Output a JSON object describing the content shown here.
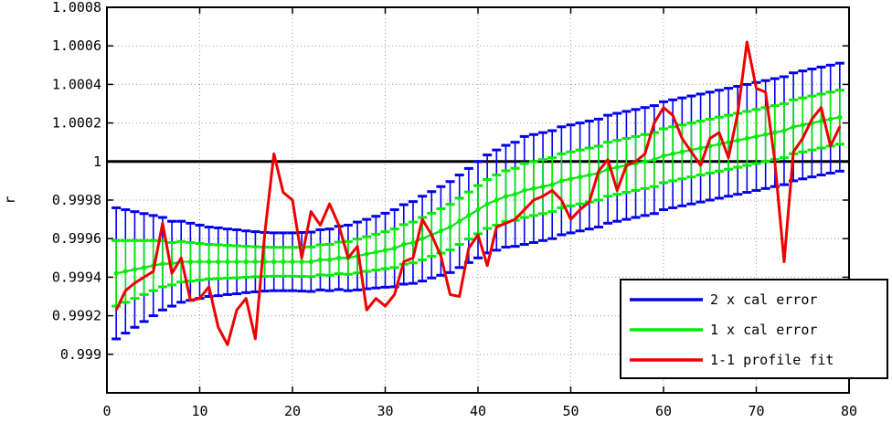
{
  "chart_data": {
    "type": "line",
    "title": "",
    "xlabel": "",
    "ylabel": "r",
    "xlim": [
      0,
      80
    ],
    "ylim": [
      0.9988,
      1.0008
    ],
    "x_ticks": [
      0,
      10,
      20,
      30,
      40,
      50,
      60,
      70,
      80
    ],
    "y_ticks": [
      0.999,
      0.9992,
      0.9994,
      0.9996,
      0.9998,
      1,
      1.0002,
      1.0004,
      1.0006,
      1.0008
    ],
    "y_tick_labels": [
      "0.999",
      "0.9992",
      "0.9994",
      "0.9996",
      "0.9998",
      "1",
      "1.0002",
      "1.0004",
      "1.0006",
      "1.0008"
    ],
    "grid": true,
    "legend_position": "bottom-right",
    "reference_line": {
      "y": 1,
      "color": "#000000"
    },
    "calibration": {
      "x": [
        1,
        2,
        3,
        4,
        5,
        6,
        7,
        8,
        9,
        10,
        11,
        12,
        13,
        14,
        15,
        16,
        17,
        18,
        19,
        20,
        21,
        22,
        23,
        24,
        25,
        26,
        27,
        28,
        29,
        30,
        31,
        32,
        33,
        34,
        35,
        36,
        37,
        38,
        39,
        40,
        41,
        42,
        43,
        44,
        45,
        46,
        47,
        48,
        49,
        50,
        51,
        52,
        53,
        54,
        55,
        56,
        57,
        58,
        59,
        60,
        61,
        62,
        63,
        64,
        65,
        66,
        67,
        68,
        69,
        70,
        71,
        72,
        73,
        74,
        75,
        76,
        77,
        78,
        79
      ],
      "center": [
        0.99942,
        0.99943,
        0.99944,
        0.99945,
        0.99946,
        0.99947,
        0.99947,
        0.99948,
        0.99948,
        0.99948,
        0.99948,
        0.99948,
        0.99948,
        0.99948,
        0.99948,
        0.99948,
        0.99948,
        0.99948,
        0.99948,
        0.99948,
        0.99948,
        0.99948,
        0.99949,
        0.99949,
        0.9995,
        0.9995,
        0.99951,
        0.99952,
        0.99953,
        0.99954,
        0.99955,
        0.99957,
        0.99958,
        0.9996,
        0.99962,
        0.99964,
        0.99966,
        0.99969,
        0.99972,
        0.99975,
        0.99978,
        0.9998,
        0.99982,
        0.99983,
        0.99985,
        0.99986,
        0.99987,
        0.99988,
        0.9999,
        0.99991,
        0.99992,
        0.99993,
        0.99994,
        0.99996,
        0.99997,
        0.99998,
        0.99999,
        1.0,
        1.00001,
        1.00003,
        1.00004,
        1.00005,
        1.00006,
        1.00007,
        1.00008,
        1.00009,
        1.0001,
        1.00011,
        1.00012,
        1.00013,
        1.00014,
        1.00015,
        1.00016,
        1.00018,
        1.00019,
        1.0002,
        1.00021,
        1.00022,
        1.00023
      ],
      "sigma": [
        0.00017,
        0.00016,
        0.00015,
        0.00014,
        0.00013,
        0.00012,
        0.00011,
        0.000105,
        0.0001,
        9.5e-05,
        9e-05,
        8.8e-05,
        8.5e-05,
        8.3e-05,
        8e-05,
        7.8e-05,
        7.6e-05,
        7.5e-05,
        7.5e-05,
        7.5e-05,
        7.6e-05,
        7.7e-05,
        7.8e-05,
        8e-05,
        8.2e-05,
        8.5e-05,
        8.8e-05,
        9e-05,
        9.3e-05,
        9.6e-05,
        0.0001,
        0.000103,
        0.000106,
        0.00011,
        0.000112,
        0.000115,
        0.000118,
        0.00012,
        0.000122,
        0.000125,
        0.000127,
        0.00013,
        0.000132,
        0.000135,
        0.00014,
        0.00014,
        0.00014,
        0.00014,
        0.00014,
        0.00014,
        0.00014,
        0.00014,
        0.00014,
        0.00014,
        0.00014,
        0.00014,
        0.00014,
        0.00014,
        0.00014,
        0.00014,
        0.00014,
        0.00014,
        0.00014,
        0.00014,
        0.00014,
        0.00014,
        0.00014,
        0.00014,
        0.00014,
        0.00014,
        0.00014,
        0.00014,
        0.00014,
        0.00014,
        0.00014,
        0.00014,
        0.00014,
        0.00014,
        0.00014
      ]
    },
    "series": [
      {
        "name": "2 x cal error",
        "color": "#0000ee",
        "multiplier": 2
      },
      {
        "name": "1 x cal error",
        "color": "#00ee00",
        "multiplier": 1
      },
      {
        "name": "1-1 profile fit",
        "color": "#ee0000",
        "x": [
          1,
          2,
          3,
          4,
          5,
          6,
          7,
          8,
          9,
          10,
          11,
          12,
          13,
          14,
          15,
          16,
          17,
          18,
          19,
          20,
          21,
          22,
          23,
          24,
          25,
          26,
          27,
          28,
          29,
          30,
          31,
          32,
          33,
          34,
          35,
          36,
          37,
          38,
          39,
          40,
          41,
          42,
          43,
          44,
          45,
          46,
          47,
          48,
          49,
          50,
          51,
          52,
          53,
          54,
          55,
          56,
          57,
          58,
          59,
          60,
          61,
          62,
          63,
          64,
          65,
          66,
          67,
          68,
          69,
          70,
          71,
          72,
          73,
          74,
          75,
          76,
          77,
          78,
          79
        ],
        "values": [
          0.99923,
          0.99933,
          0.99937,
          0.9994,
          0.99943,
          0.99968,
          0.99942,
          0.9995,
          0.99928,
          0.99929,
          0.99935,
          0.99914,
          0.99905,
          0.99923,
          0.99929,
          0.99908,
          0.99962,
          1.00004,
          0.99984,
          0.9998,
          0.9995,
          0.99974,
          0.99967,
          0.99978,
          0.99967,
          0.9995,
          0.99956,
          0.99923,
          0.99929,
          0.99925,
          0.99931,
          0.99948,
          0.9995,
          0.9997,
          0.99962,
          0.99951,
          0.99931,
          0.9993,
          0.99955,
          0.99962,
          0.99946,
          0.99966,
          0.99968,
          0.9997,
          0.99975,
          0.9998,
          0.99982,
          0.99985,
          0.9998,
          0.9997,
          0.99975,
          0.99979,
          0.99995,
          1.00001,
          0.99985,
          0.99998,
          1.0,
          1.00004,
          1.0002,
          1.00028,
          1.00024,
          1.00012,
          1.00005,
          0.99998,
          1.00012,
          1.00015,
          1.00002,
          1.00025,
          1.00062,
          1.00038,
          1.00036,
          1.0,
          0.99948,
          1.00005,
          1.00012,
          1.00022,
          1.00028,
          1.00008,
          1.00018
        ]
      }
    ]
  }
}
